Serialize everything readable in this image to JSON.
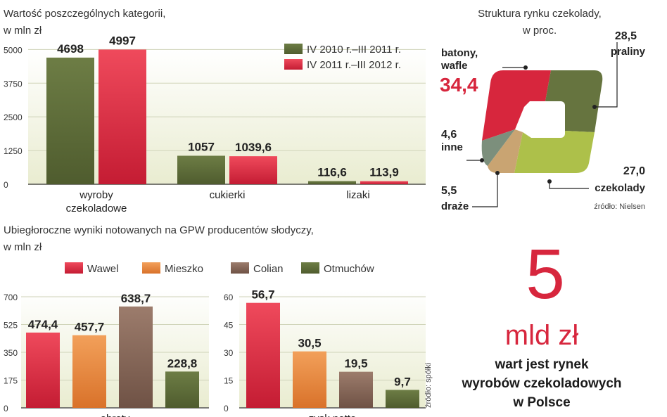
{
  "colors": {
    "dark_green": "#5c6b3a",
    "red": "#d7263d",
    "light_green": "#a9bd45",
    "gray_green": "#7c8f7c",
    "tan": "#c9a472",
    "orange": "#e8883a",
    "brown": "#8a6a5c",
    "accent_red": "#d7263d"
  },
  "chart_data": [
    {
      "id": "categories",
      "type": "bar",
      "title": "Wartość poszczególnych kategorii,",
      "subtitle": "w mln zł",
      "categories": [
        "wyroby\nczekoladowe",
        "cukierki",
        "lizaki"
      ],
      "series": [
        {
          "name": "IV 2010 r.–III 2011 r.",
          "values": [
            4698,
            1057,
            116.6
          ],
          "labels": [
            "4698",
            "1057",
            "116,6"
          ]
        },
        {
          "name": "IV 2011 r.–III 2012 r.",
          "values": [
            4997,
            1039.6,
            113.9
          ],
          "labels": [
            "4997",
            "1039,6",
            "113,9"
          ]
        }
      ],
      "yticks": [
        "0",
        "1250",
        "2500",
        "3750",
        "5000"
      ],
      "ylim": [
        0,
        5400
      ],
      "legend_position": "top-right"
    },
    {
      "id": "market_structure",
      "type": "pie",
      "title": "Struktura rynku czekolady,",
      "subtitle": "w proc.",
      "slices": [
        {
          "label": "batony,\nwafle",
          "value": 34.4,
          "value_label": "34,4"
        },
        {
          "label": "praliny",
          "value": 28.5,
          "value_label": "28,5"
        },
        {
          "label": "czekolady",
          "value": 27.0,
          "value_label": "27,0"
        },
        {
          "label": "draże",
          "value": 5.5,
          "value_label": "5,5"
        },
        {
          "label": "inne",
          "value": 4.6,
          "value_label": "4,6"
        }
      ],
      "source": "źródło: Nielsen"
    },
    {
      "id": "producers",
      "type": "bar",
      "title": "Ubiegłoroczne wyniki  notowanych na GPW producentów słodyczy,",
      "subtitle": "w mln zł",
      "legend": [
        "Wawel",
        "Mieszko",
        "Colian",
        "Otmuchów"
      ],
      "panels": [
        {
          "xlabel": "obroty",
          "values": [
            474.4,
            457.7,
            638.7,
            228.8
          ],
          "labels": [
            "474,4",
            "457,7",
            "638,7",
            "228,8"
          ],
          "yticks": [
            "0",
            "175",
            "350",
            "525",
            "700"
          ],
          "ylim": [
            0,
            700
          ]
        },
        {
          "xlabel": "zysk netto",
          "values": [
            56.7,
            30.5,
            19.5,
            9.7
          ],
          "labels": [
            "56,7",
            "30,5",
            "19,5",
            "9,7"
          ],
          "yticks": [
            "0",
            "15",
            "30",
            "45",
            "60"
          ],
          "ylim": [
            0,
            60
          ]
        }
      ],
      "source": "źródło: spółki"
    }
  ],
  "callout": {
    "number": "5",
    "unit": "mld zł",
    "description": "wart jest rynek\nwyrobów czekoladowych\nw Polsce"
  }
}
